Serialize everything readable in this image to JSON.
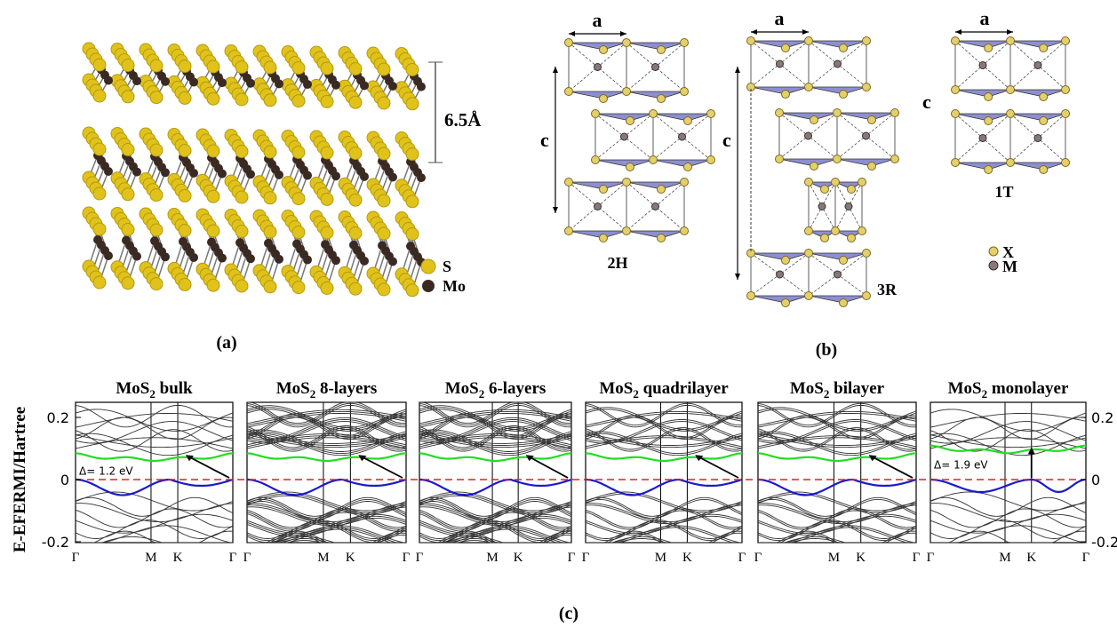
{
  "panel_a": {
    "label": "(a)",
    "spacing": "6.5Å",
    "legend": [
      "S",
      "Mo"
    ]
  },
  "panel_b": {
    "label": "(b)",
    "lattice_label": "a",
    "axis_label": "c",
    "structures": [
      "2H",
      "3R",
      "1T"
    ],
    "legend": [
      "X",
      "M"
    ]
  },
  "panel_c": {
    "label": "(c)",
    "y_axis_label": "E-EFERMI/Hartree",
    "plots": [
      {
        "formula": "MoS",
        "subscript": "2",
        "name": " bulk",
        "gap": "Δ= 1.2 eV"
      },
      {
        "formula": "MoS",
        "subscript": "2",
        "name": " 8-layers"
      },
      {
        "formula": "MoS",
        "subscript": "2",
        "name": " 6-layers"
      },
      {
        "formula": "MoS",
        "subscript": "2",
        "name": " quadrilayer"
      },
      {
        "formula": "MoS",
        "subscript": "2",
        "name": " bilayer"
      },
      {
        "formula": "MoS",
        "subscript": "2",
        "name": " monolayer",
        "gap": "Δ= 1.9 eV"
      }
    ],
    "left_ticks": [
      "0.2",
      "0",
      "-0.2"
    ],
    "right_ticks": [
      "0.2",
      "0",
      "-0.2"
    ],
    "k_points": [
      "Γ",
      "M",
      "K",
      "Γ"
    ]
  }
}
